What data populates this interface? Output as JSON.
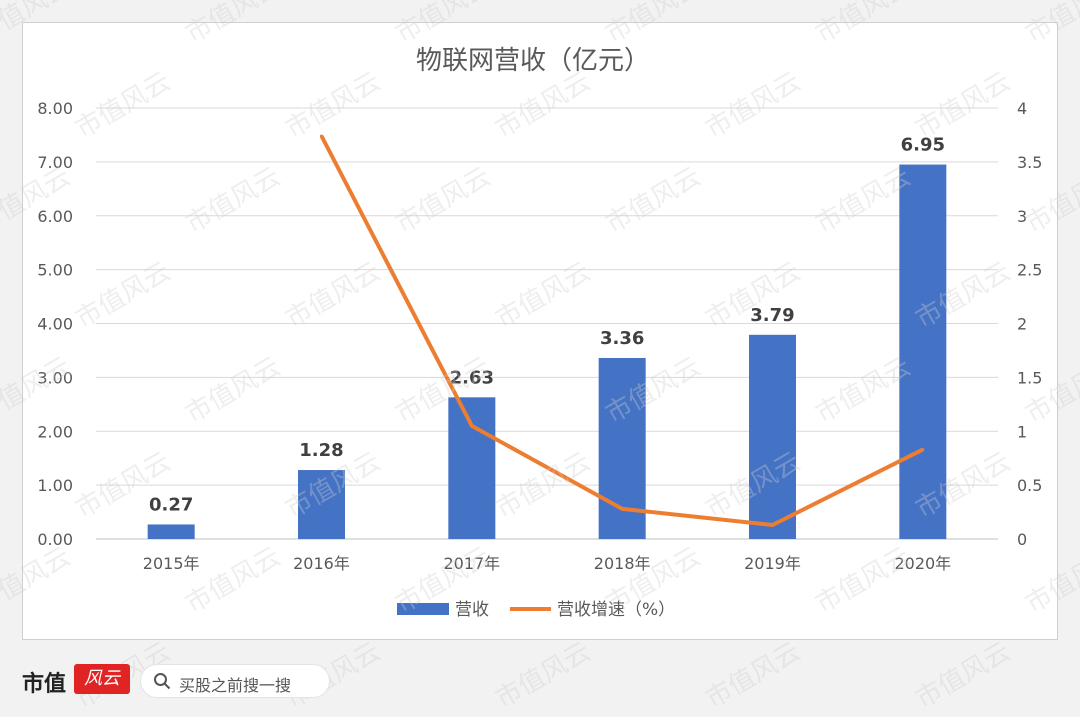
{
  "chart_data": {
    "type": "bar",
    "title": "物联网营收（亿元）",
    "categories": [
      "2015年",
      "2016年",
      "2017年",
      "2018年",
      "2019年",
      "2020年"
    ],
    "series": [
      {
        "name": "营收",
        "type": "bar",
        "axis": "left",
        "color": "#4472c4",
        "values": [
          0.27,
          1.28,
          2.63,
          3.36,
          3.79,
          6.95
        ],
        "labels": [
          "0.27",
          "1.28",
          "2.63",
          "3.36",
          "3.79",
          "6.95"
        ]
      },
      {
        "name": "营收增速（%）",
        "type": "line",
        "axis": "right",
        "color": "#ed7d31",
        "values": [
          null,
          3.74,
          1.05,
          0.28,
          0.13,
          0.83
        ]
      }
    ],
    "left_axis": {
      "ylim": [
        0,
        8
      ],
      "ticks": [
        "0.00",
        "1.00",
        "2.00",
        "3.00",
        "4.00",
        "5.00",
        "6.00",
        "7.00",
        "8.00"
      ]
    },
    "right_axis": {
      "ylim": [
        0,
        4
      ],
      "ticks": [
        "0",
        "0.5",
        "1",
        "1.5",
        "2",
        "2.5",
        "3",
        "3.5",
        "4"
      ]
    },
    "grid": true,
    "legend": "bottom"
  },
  "watermark": "市值风云",
  "branding": {
    "logo_text": "市值",
    "logo_mark": "风云",
    "search_label": "买股之前搜一搜"
  }
}
